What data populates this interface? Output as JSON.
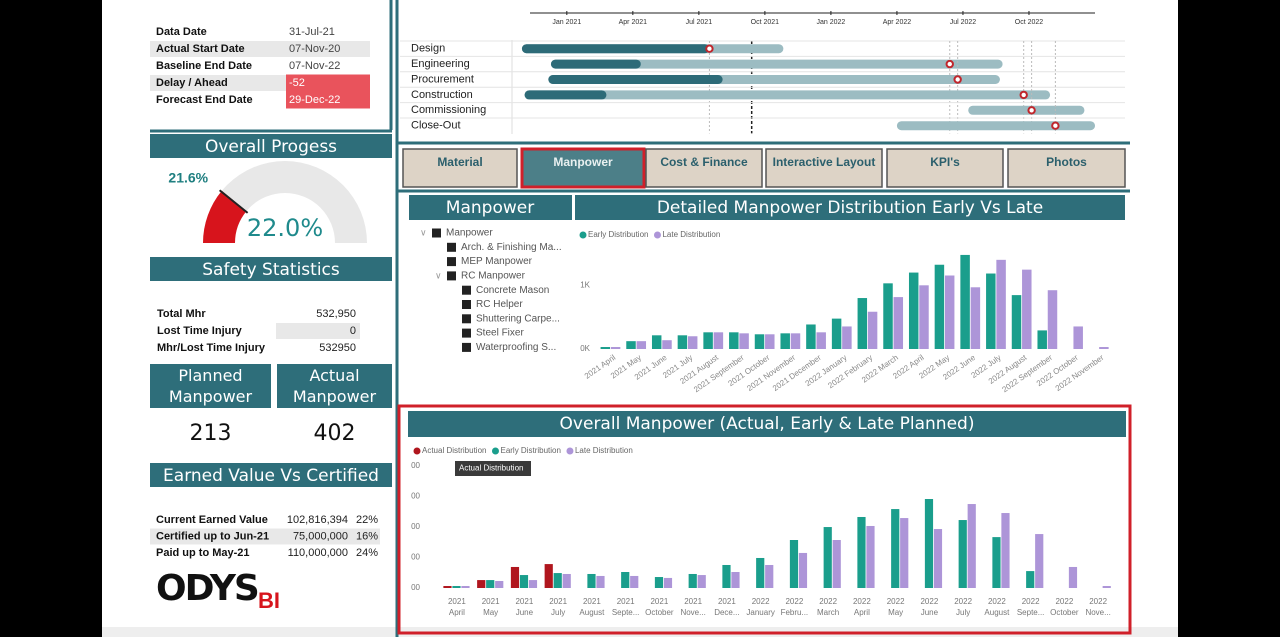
{
  "info": {
    "rows": [
      {
        "label": "Data Date",
        "value": "31-Jul-21"
      },
      {
        "label": "Actual Start Date",
        "value": "07-Nov-20"
      },
      {
        "label": "Baseline End Date",
        "value": "07-Nov-22"
      },
      {
        "label": "Delay / Ahead",
        "value": -52,
        "highlight": "#e9535c"
      },
      {
        "label": "Forecast End Date",
        "value": "29-Dec-22",
        "highlight": "#e9535c"
      }
    ]
  },
  "progress": {
    "title": "Overall Progess",
    "value": 22.0,
    "value_label": "22.0%",
    "marker": 21.6,
    "marker_label": "21.6%",
    "color": "#d7141c",
    "track_color": "#e8e8e8"
  },
  "safety": {
    "title": "Safety Statistics",
    "rows": [
      {
        "label": "Total Mhr",
        "value": 532950,
        "value_label": "532,950"
      },
      {
        "label": "Lost Time Injury",
        "value": 0
      },
      {
        "label": "Mhr/Lost Time Injury",
        "value": 532950
      }
    ]
  },
  "manpower_cards": [
    {
      "label": "Planned Manpower",
      "value": 213
    },
    {
      "label": "Actual Manpower",
      "value": 402
    }
  ],
  "earned_value": {
    "title": "Earned Value Vs Certified",
    "rows": [
      {
        "label": "Current Earned Value",
        "value": 102816394,
        "value_label": "102,816,394",
        "pct": 22,
        "pct_label": "22%"
      },
      {
        "label": "Certified up to Jun-21",
        "value": 75000000,
        "value_label": "75,000,000",
        "pct": 16,
        "pct_label": "16%"
      },
      {
        "label": "Paid up to May-21",
        "value": 110000000,
        "value_label": "110,000,000",
        "pct": 24,
        "pct_label": "24%"
      }
    ]
  },
  "logo": {
    "name": "ODYS",
    "suffix": "BI"
  },
  "tabs": {
    "items": [
      "Material",
      "Manpower",
      "Cost & Finance",
      "Interactive Layout",
      "KPI's",
      "Photos"
    ],
    "selected": "Manpower"
  },
  "slicer": {
    "title": "Manpower",
    "items": [
      {
        "label": "Manpower",
        "children": [
          {
            "label": "Arch. & Finishing Ma..."
          },
          {
            "label": "MEP Manpower"
          },
          {
            "label": "RC Manpower",
            "children": [
              {
                "label": "Concrete Mason"
              },
              {
                "label": "RC Helper"
              },
              {
                "label": "Shuttering Carpe..."
              },
              {
                "label": "Steel Fixer"
              },
              {
                "label": "Waterproofing S..."
              }
            ]
          }
        ]
      }
    ]
  },
  "chart_data": [
    {
      "type": "gantt",
      "xlim": [
        2020.8,
        2023.0
      ],
      "xticks": [
        {
          "value": 2021,
          "label": "Jan 2021"
        },
        {
          "value": 2021.25,
          "label": "Apr 2021"
        },
        {
          "value": 2021.5,
          "label": "Jul 2021"
        },
        {
          "value": 2021.75,
          "label": "Oct 2021"
        },
        {
          "value": 2022,
          "label": "Jan 2022"
        },
        {
          "value": 2022.25,
          "label": "Apr 2022"
        },
        {
          "value": 2022.5,
          "label": "Jul 2022"
        },
        {
          "value": 2022.75,
          "label": "Oct 2022"
        }
      ],
      "data_date": 2021.7,
      "bar_color": "#9cbcc2",
      "progress_color": "#2d6b78",
      "marker_color": "#c0262c",
      "tasks": [
        {
          "name": "Design",
          "start": 2020.83,
          "end": 2021.82,
          "progress_end": 2021.54,
          "marker": 2021.54
        },
        {
          "name": "Engineering",
          "start": 2020.94,
          "end": 2022.65,
          "progress_end": 2021.28,
          "marker": 2022.45
        },
        {
          "name": "Procurement",
          "start": 2020.93,
          "end": 2022.64,
          "progress_end": 2021.59,
          "marker": 2022.48
        },
        {
          "name": "Construction",
          "start": 2020.84,
          "end": 2022.83,
          "progress_end": 2021.15,
          "marker": 2022.73
        },
        {
          "name": "Commissioning",
          "start": 2022.52,
          "end": 2022.96,
          "progress_end": null,
          "marker": 2022.76
        },
        {
          "name": "Close-Out",
          "start": 2022.25,
          "end": 2023.0,
          "progress_end": null,
          "marker": 2022.85
        }
      ]
    },
    {
      "type": "bar",
      "title": "Detailed Manpower Distribution Early Vs Late",
      "categories": [
        "2021 April",
        "2021 May",
        "2021 June",
        "2021 July",
        "2021 August",
        "2021 September",
        "2021 October",
        "2021 November",
        "2021 December",
        "2022 January",
        "2022 February",
        "2022 March",
        "2022 April",
        "2022 May",
        "2022 June",
        "2022 July",
        "2022 August",
        "2022 September",
        "2022 October",
        "2022 November"
      ],
      "series": [
        {
          "name": "Early Distribution",
          "color": "#1a9e8c",
          "values": [
            31,
            123,
            215,
            215,
            262,
            262,
            231,
            246,
            385,
            477,
            800,
            1031,
            1200,
            1323,
            1477,
            1185,
            846,
            292,
            0,
            0
          ]
        },
        {
          "name": "Late Distribution",
          "color": "#ad95d8",
          "values": [
            31,
            123,
            138,
            200,
            262,
            246,
            231,
            246,
            262,
            354,
            585,
            815,
            1000,
            1154,
            969,
            1400,
            1246,
            923,
            354,
            31
          ]
        }
      ],
      "ylim": [
        0,
        1680
      ],
      "yticks": [
        {
          "value": 0,
          "label": "0K"
        },
        {
          "value": 1000,
          "label": "1K"
        }
      ]
    },
    {
      "type": "bar",
      "title": "Overall Manpower (Actual, Early & Late Planned)",
      "categories": [
        [
          "2021",
          "April"
        ],
        [
          "2021",
          "May"
        ],
        [
          "2021",
          "June"
        ],
        [
          "2021",
          "July"
        ],
        [
          "2021",
          "August"
        ],
        [
          "2021",
          "Septe..."
        ],
        [
          "2021",
          "October"
        ],
        [
          "2021",
          "Nove..."
        ],
        [
          "2021",
          "Dece..."
        ],
        [
          "2022",
          "January"
        ],
        [
          "2022",
          "Febru..."
        ],
        [
          "2022",
          "March"
        ],
        [
          "2022",
          "April"
        ],
        [
          "2022",
          "May"
        ],
        [
          "2022",
          "June"
        ],
        [
          "2022",
          "July"
        ],
        [
          "2022",
          "August"
        ],
        [
          "2022",
          "Septe..."
        ],
        [
          "2022",
          "October"
        ],
        [
          "2022",
          "Nove..."
        ]
      ],
      "series": [
        {
          "name": "Actual Distribution",
          "color": "#b0161e",
          "values": [
            13,
            52,
            138,
            157,
            0,
            0,
            0,
            0,
            0,
            0,
            0,
            0,
            0,
            0,
            0,
            0,
            0,
            0,
            0,
            0
          ]
        },
        {
          "name": "Early Distribution",
          "color": "#1a9e8c",
          "values": [
            13,
            52,
            85,
            98,
            92,
            105,
            72,
            92,
            151,
            197,
            315,
            400,
            466,
            518,
            584,
            446,
            334,
            111,
            0,
            0
          ]
        },
        {
          "name": "Late Distribution",
          "color": "#ad95d8",
          "values": [
            13,
            46,
            52,
            92,
            79,
            79,
            66,
            85,
            105,
            151,
            230,
            315,
            407,
            459,
            387,
            551,
            492,
            354,
            138,
            13
          ]
        }
      ],
      "ylim": [
        0,
        840
      ],
      "yticks": [
        {
          "value": 0,
          "label": "00"
        },
        {
          "value": 200,
          "label": "00"
        },
        {
          "value": 400,
          "label": "00"
        },
        {
          "value": 600,
          "label": "00"
        },
        {
          "value": 800,
          "label": "00"
        }
      ],
      "tooltip": "Actual Distribution"
    }
  ]
}
